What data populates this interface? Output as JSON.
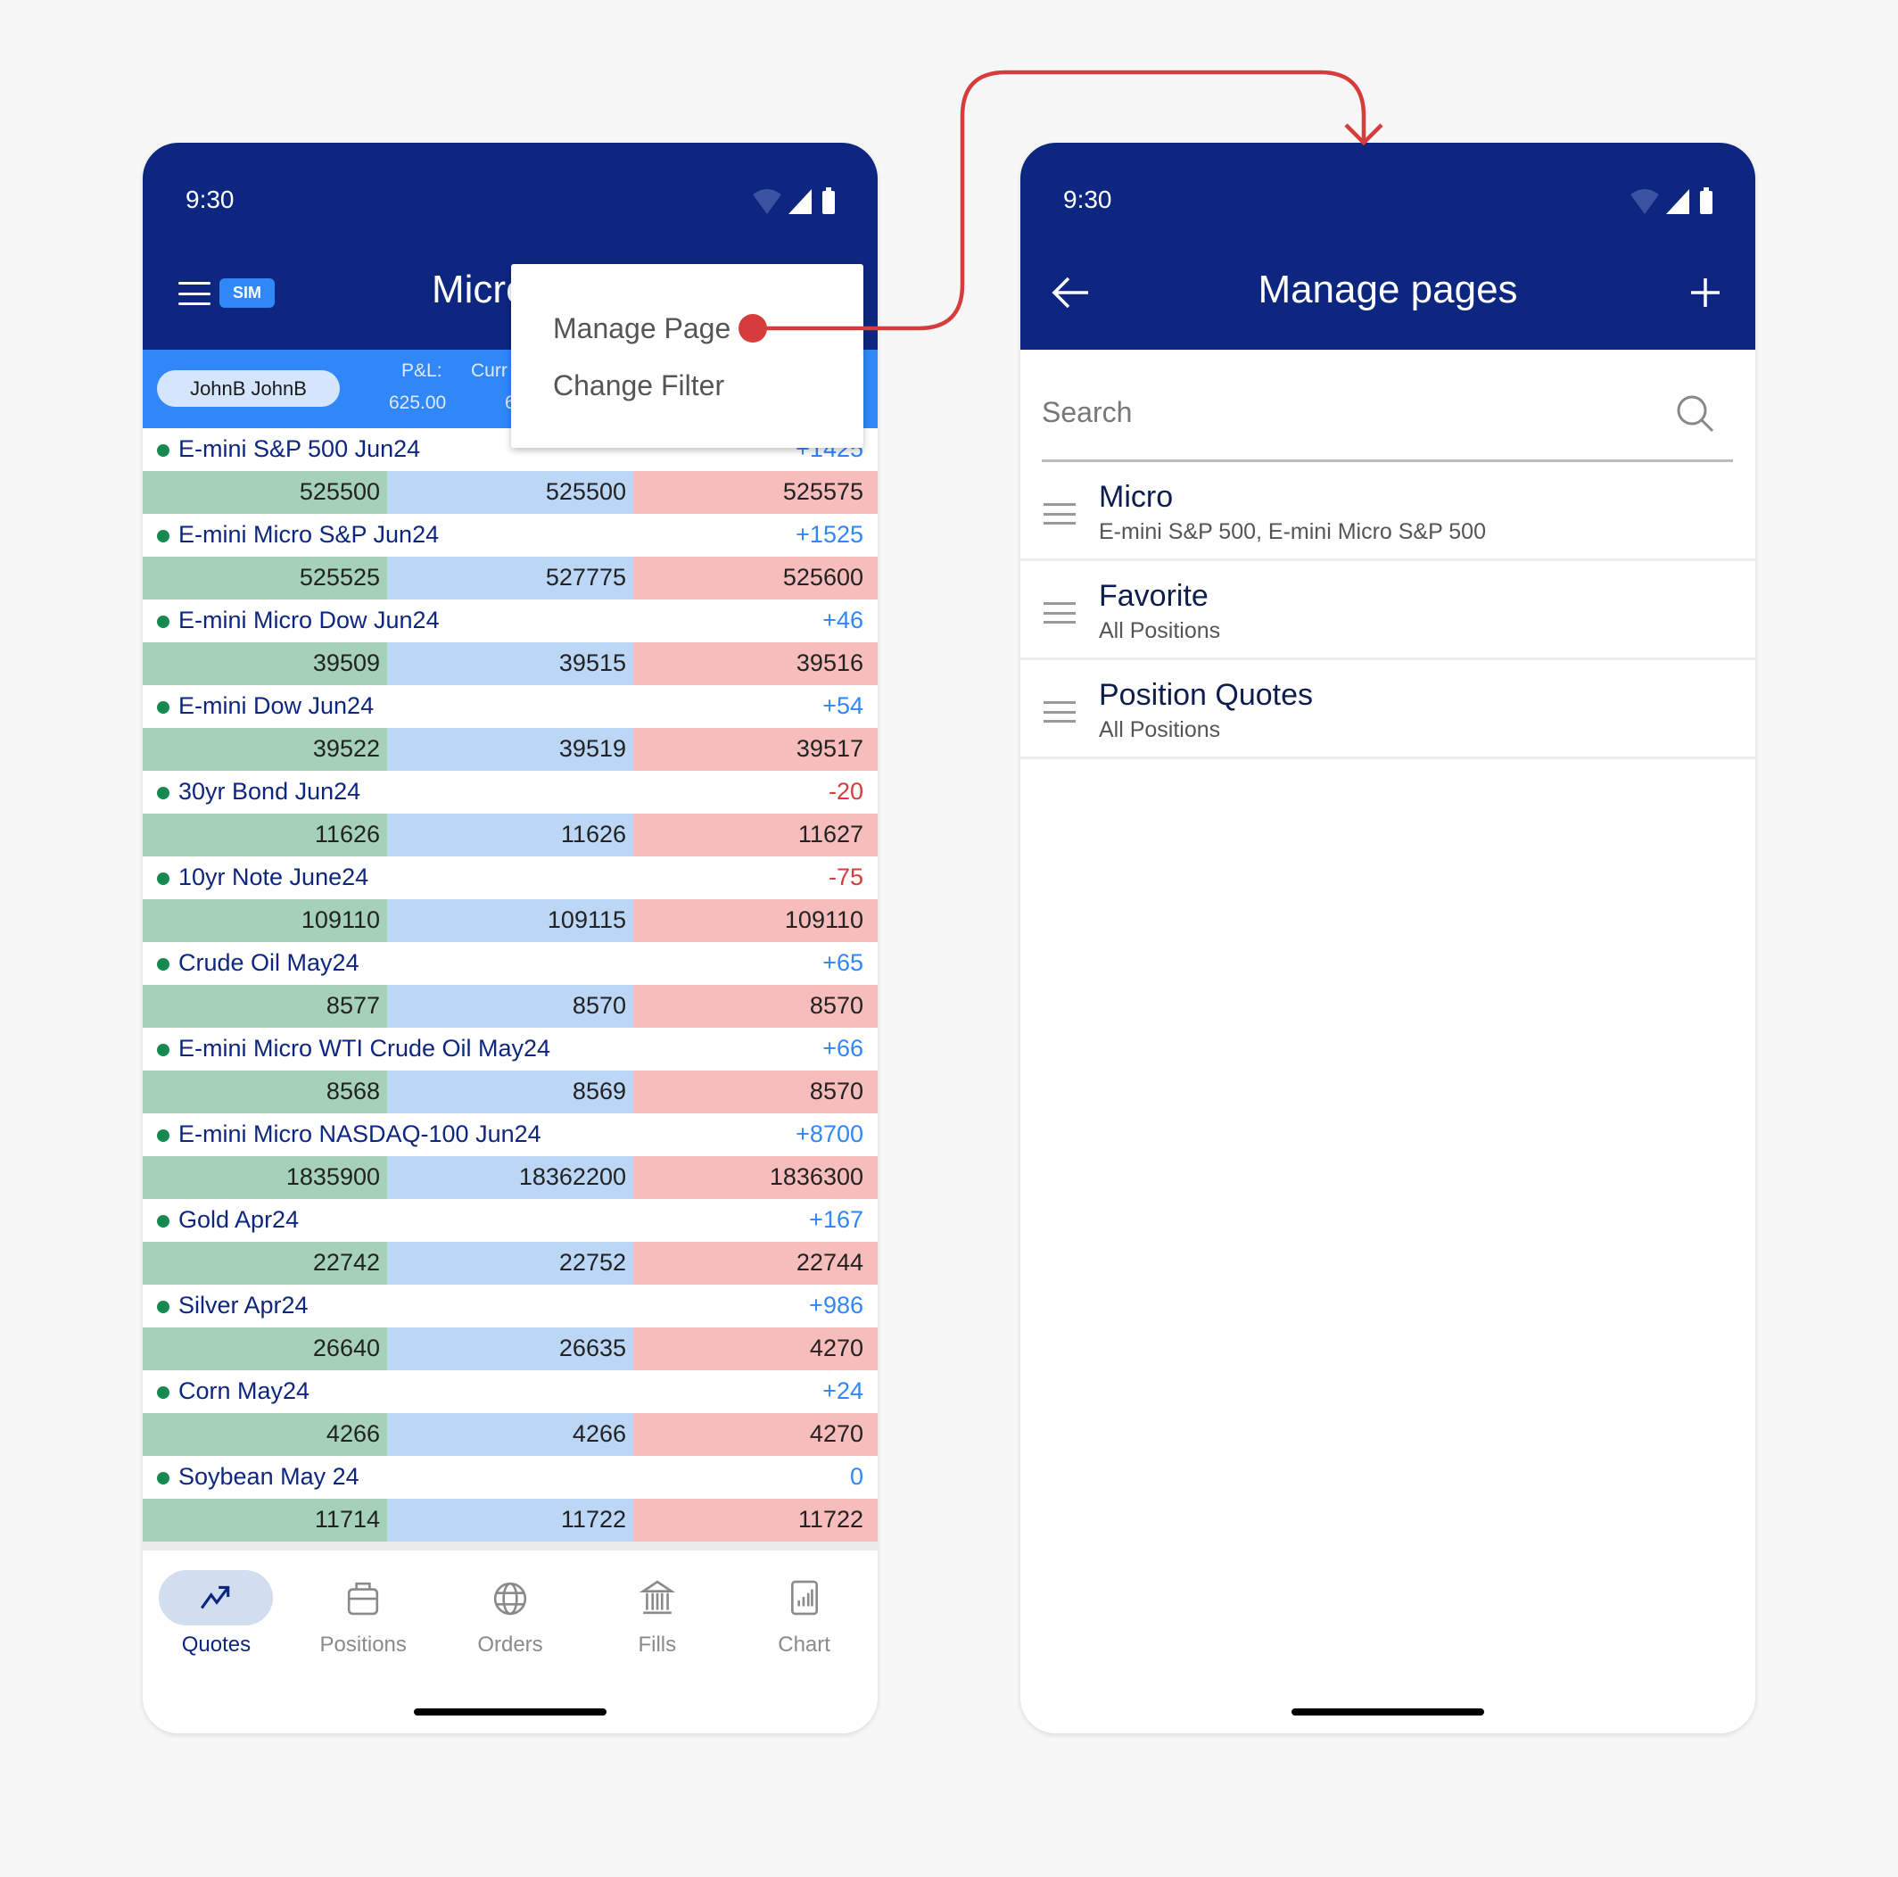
{
  "colors": {
    "header": "#0d2680",
    "accent": "#2f87f8",
    "positive": "#2f87f8",
    "negative": "#d63c3c",
    "bid": "#a5d0b9",
    "last": "#bcd6f5",
    "ask": "#f7bcbc",
    "connector": "#d63c3c"
  },
  "quotes_screen": {
    "status_time": "9:30",
    "title": "Micro",
    "sim_badge": "SIM",
    "account": "JohnB JohnB",
    "pnl_label": "P&L:",
    "pnl_value": "625.00",
    "curr_label": "Curr",
    "curr_value": "6",
    "menu": {
      "items": [
        "Manage Page",
        "Change Filter"
      ]
    },
    "instruments": [
      {
        "name": "E-mini S&P 500 Jun24",
        "change": "+1425",
        "bid": "525500",
        "last": "525500",
        "ask": "525575"
      },
      {
        "name": "E-mini Micro S&P Jun24",
        "change": "+1525",
        "bid": "525525",
        "last": "527775",
        "ask": "525600"
      },
      {
        "name": "E-mini Micro Dow Jun24",
        "change": "+46",
        "bid": "39509",
        "last": "39515",
        "ask": "39516"
      },
      {
        "name": "E-mini Dow Jun24",
        "change": "+54",
        "bid": "39522",
        "last": "39519",
        "ask": "39517"
      },
      {
        "name": "30yr Bond Jun24",
        "change": "-20",
        "bid": "11626",
        "last": "11626",
        "ask": "11627"
      },
      {
        "name": "10yr Note June24",
        "change": "-75",
        "bid": "109110",
        "last": "109115",
        "ask": "109110"
      },
      {
        "name": "Crude Oil May24",
        "change": "+65",
        "bid": "8577",
        "last": "8570",
        "ask": "8570"
      },
      {
        "name": "E-mini Micro WTI Crude Oil May24",
        "change": "+66",
        "bid": "8568",
        "last": "8569",
        "ask": "8570"
      },
      {
        "name": "E-mini Micro NASDAQ-100 Jun24",
        "change": "+8700",
        "bid": "1835900",
        "last": "18362200",
        "ask": "1836300"
      },
      {
        "name": "Gold Apr24",
        "change": "+167",
        "bid": "22742",
        "last": "22752",
        "ask": "22744"
      },
      {
        "name": "Silver Apr24",
        "change": "+986",
        "bid": "26640",
        "last": "26635",
        "ask": "4270"
      },
      {
        "name": "Corn May24",
        "change": "+24",
        "bid": "4266",
        "last": "4266",
        "ask": "4270"
      },
      {
        "name": "Soybean May 24",
        "change": "0",
        "bid": "11714",
        "last": "11722",
        "ask": "11722"
      }
    ],
    "nav": [
      {
        "label": "Quotes",
        "icon": "trending-up-icon",
        "active": true
      },
      {
        "label": "Positions",
        "icon": "briefcase-icon"
      },
      {
        "label": "Orders",
        "icon": "globe-icon"
      },
      {
        "label": "Fills",
        "icon": "bank-icon"
      },
      {
        "label": "Chart",
        "icon": "bar-chart-icon"
      }
    ]
  },
  "manage_screen": {
    "status_time": "9:30",
    "title": "Manage pages",
    "search_placeholder": "Search",
    "pages": [
      {
        "title": "Micro",
        "subtitle": "E-mini S&P 500, E-mini Micro S&P 500"
      },
      {
        "title": "Favorite",
        "subtitle": "All Positions"
      },
      {
        "title": "Position Quotes",
        "subtitle": "All Positions"
      }
    ]
  }
}
